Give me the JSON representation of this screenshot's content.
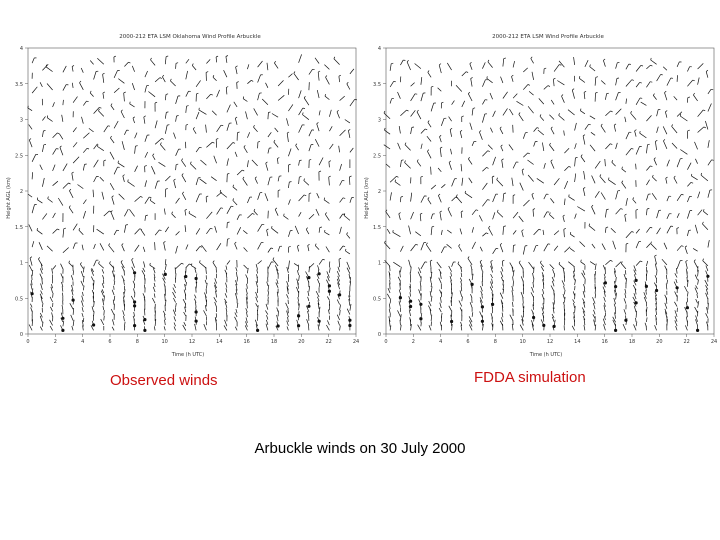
{
  "page": {
    "main_title": "Arbuckle winds on 30 July 2000",
    "left_caption": "Observed winds",
    "right_caption": "FDDA simulation",
    "caption_color": "#cc1111"
  },
  "chart_data": [
    {
      "type": "wind-barb-profile",
      "title": "2000-212 ETA LSM Oklahoma Wind Profile Arbuckle",
      "xlabel": "Time (h UTC)",
      "ylabel": "Height AGL (km)",
      "xlim": [
        0,
        24
      ],
      "ylim": [
        0,
        4
      ],
      "xticks": [
        "0",
        "2",
        "4",
        "6",
        "8",
        "10",
        "12",
        "14",
        "16",
        "18",
        "20",
        "22",
        "24"
      ],
      "yticks": [
        "0",
        "0.5",
        "1",
        "1.5",
        "2",
        "2.5",
        "3",
        "3.5",
        "4"
      ],
      "grid": false
    },
    {
      "type": "wind-barb-profile",
      "title": "2000-212 ETA LSM Wind Profile Arbuckle",
      "xlabel": "Time (h UTC)",
      "ylabel": "Height AGL (km)",
      "xlim": [
        0,
        24
      ],
      "ylim": [
        0,
        4
      ],
      "xticks": [
        "0",
        "2",
        "4",
        "6",
        "8",
        "10",
        "12",
        "14",
        "16",
        "18",
        "20",
        "22",
        "24"
      ],
      "yticks": [
        "0",
        "0.5",
        "1",
        "1.5",
        "2",
        "2.5",
        "3",
        "3.5",
        "4"
      ],
      "grid": false
    }
  ]
}
